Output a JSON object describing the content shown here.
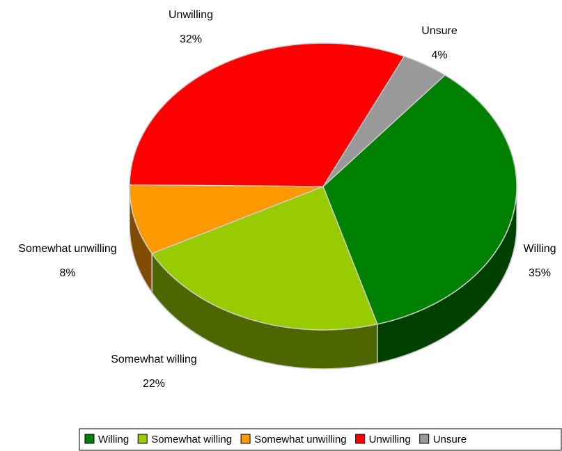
{
  "chart_data": {
    "type": "pie",
    "categories": [
      "Willing",
      "Somewhat willing",
      "Somewhat unwilling",
      "Unwilling",
      "Unsure"
    ],
    "values": [
      35,
      22,
      8,
      32,
      4
    ],
    "value_labels": [
      "35%",
      "22%",
      "8%",
      "32%",
      "4%"
    ],
    "colors": [
      "#008000",
      "#99cc00",
      "#ff9900",
      "#ff0000",
      "#999999"
    ],
    "legend": "bottom"
  }
}
